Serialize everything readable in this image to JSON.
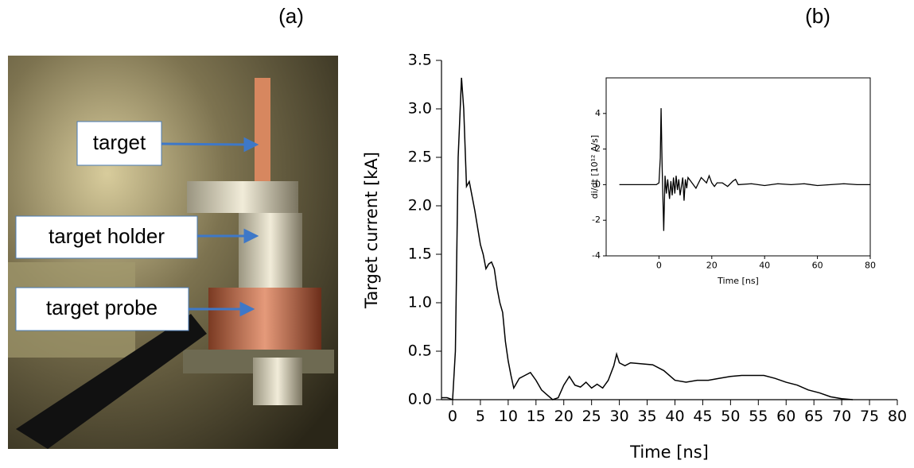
{
  "panels": {
    "a": "(a)",
    "b": "(b)"
  },
  "photo": {
    "labels": [
      "target",
      "target holder",
      "target probe"
    ]
  },
  "chart_data": [
    {
      "type": "line",
      "xlabel": "Time [ns]",
      "ylabel": "Target current  [kA]",
      "color": "#000000",
      "x": [
        -2,
        -1,
        0,
        0.5,
        1,
        1.6,
        2,
        2.5,
        3,
        3.5,
        4,
        5,
        5.5,
        6,
        6.5,
        7,
        7.5,
        8,
        8.5,
        9,
        9.5,
        10,
        10.5,
        11,
        12,
        13,
        14,
        15,
        16,
        17,
        18,
        19,
        20,
        21,
        22,
        23,
        24,
        25,
        26,
        27,
        28,
        29,
        29.5,
        30,
        31,
        32,
        34,
        36,
        38,
        40,
        42,
        44,
        46,
        48,
        50,
        52,
        54,
        56,
        58,
        60,
        62,
        64,
        66,
        68,
        70,
        72
      ],
      "values": [
        0.02,
        0.02,
        0,
        0.5,
        2.5,
        3.32,
        3.0,
        2.2,
        2.25,
        2.1,
        1.95,
        1.6,
        1.5,
        1.35,
        1.4,
        1.42,
        1.35,
        1.15,
        1.0,
        0.9,
        0.6,
        0.4,
        0.25,
        0.12,
        0.22,
        0.25,
        0.28,
        0.2,
        0.1,
        0.05,
        0,
        0.02,
        0.15,
        0.24,
        0.15,
        0.13,
        0.18,
        0.12,
        0.16,
        0.12,
        0.2,
        0.35,
        0.47,
        0.38,
        0.35,
        0.38,
        0.37,
        0.36,
        0.3,
        0.2,
        0.18,
        0.2,
        0.2,
        0.22,
        0.24,
        0.25,
        0.25,
        0.25,
        0.22,
        0.18,
        0.15,
        0.1,
        0.07,
        0.03,
        0.01,
        0
      ],
      "xlim": [
        -2,
        80
      ],
      "ylim": [
        0,
        3.5
      ],
      "xticks": [
        0,
        5,
        10,
        15,
        20,
        25,
        30,
        35,
        40,
        45,
        50,
        55,
        60,
        65,
        70,
        75,
        80
      ],
      "yticks": [
        {
          "value": 0,
          "label": "0.0"
        },
        0.5,
        {
          "value": 1,
          "label": "1.0"
        },
        1.5,
        {
          "value": 2,
          "label": "2.0"
        },
        2.5,
        {
          "value": 3,
          "label": "3.0"
        },
        3.5
      ]
    },
    {
      "type": "line",
      "xlabel": "Time [ns]",
      "ylabel": "di/dt [10¹² A/s]",
      "color": "#000000",
      "x": [
        -15,
        -10,
        -5,
        -1,
        0,
        0.5,
        0.8,
        1.2,
        1.8,
        2.3,
        2.8,
        3.3,
        4,
        4.5,
        5,
        5.5,
        6,
        6.5,
        7,
        7.5,
        8,
        9,
        9.5,
        10,
        10.5,
        11,
        12,
        14,
        16,
        18,
        19,
        20,
        21,
        22,
        24,
        26,
        28,
        29,
        30,
        35,
        40,
        45,
        50,
        55,
        60,
        65,
        70,
        75,
        80
      ],
      "values": [
        0,
        0,
        0,
        0,
        0.1,
        1.5,
        4.3,
        1.0,
        -2.6,
        0.5,
        -0.5,
        0.3,
        -0.8,
        0.2,
        -0.6,
        0.4,
        -0.5,
        0.5,
        -0.3,
        0.3,
        -0.6,
        0.4,
        -0.9,
        0.3,
        -0.2,
        0.4,
        0.2,
        -0.2,
        0.4,
        0.1,
        0.5,
        0.1,
        -0.1,
        0.1,
        0.1,
        -0.1,
        0.2,
        0.3,
        0,
        0.05,
        -0.05,
        0.05,
        0,
        0.05,
        -0.05,
        0,
        0.05,
        0,
        0
      ],
      "xlim": [
        -20,
        80
      ],
      "ylim": [
        -4,
        6
      ],
      "xticks": [
        0,
        20,
        40,
        60,
        80
      ],
      "yticks": [
        -4,
        -2,
        0,
        2,
        4
      ]
    }
  ]
}
